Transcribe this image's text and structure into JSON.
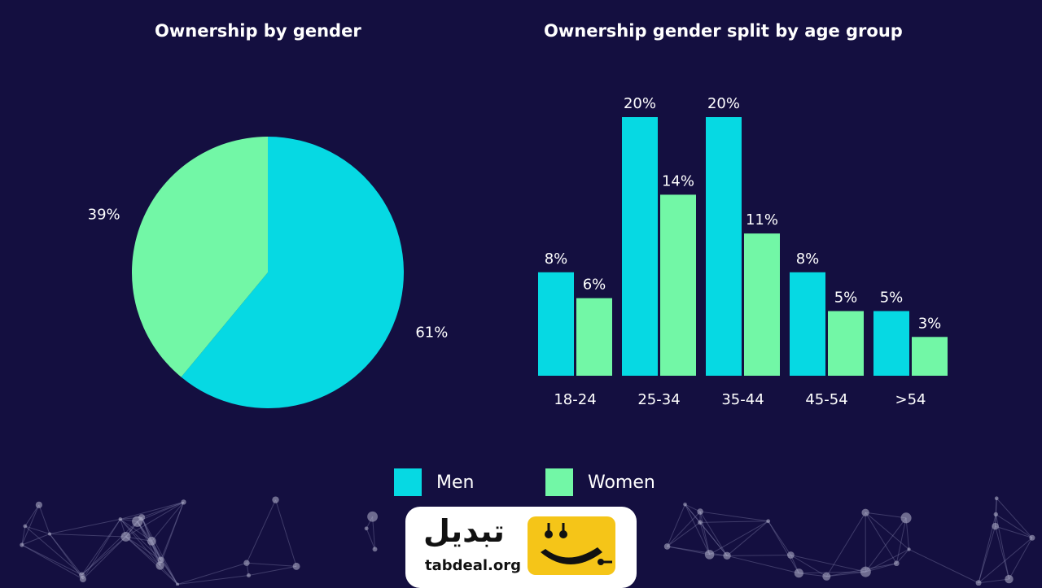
{
  "colors": {
    "background": "#140f40",
    "men": "#06d9e3",
    "women": "#72f7a6"
  },
  "chart_data": [
    {
      "type": "pie",
      "title": "Ownership by gender",
      "slices": [
        {
          "name": "Men",
          "value": 61,
          "label": "61%"
        },
        {
          "name": "Women",
          "value": 39,
          "label": "39%"
        }
      ]
    },
    {
      "type": "bar",
      "title": "Ownership gender split by age group",
      "categories": [
        "18-24",
        "25-34",
        "35-44",
        "45-54",
        ">54"
      ],
      "series": [
        {
          "name": "Men",
          "values": [
            8,
            20,
            20,
            8,
            5
          ],
          "labels": [
            "8%",
            "20%",
            "20%",
            "8%",
            "5%"
          ]
        },
        {
          "name": "Women",
          "values": [
            6,
            14,
            11,
            5,
            3
          ],
          "labels": [
            "6%",
            "14%",
            "11%",
            "5%",
            "3%"
          ]
        }
      ],
      "ylim": [
        0,
        20
      ],
      "legend": "bottom"
    }
  ],
  "legend": {
    "men": "Men",
    "women": "Women"
  },
  "logo": {
    "arabic": "تبدیل",
    "domain": "tabdeal.org"
  }
}
